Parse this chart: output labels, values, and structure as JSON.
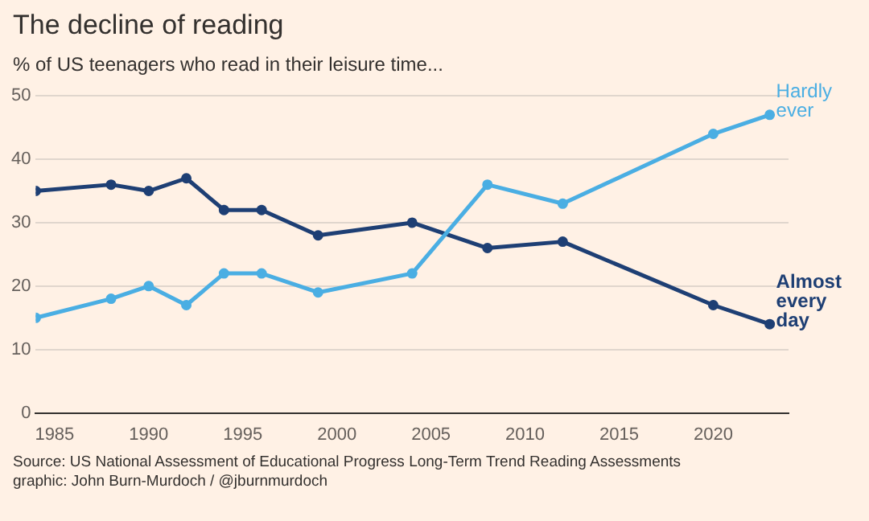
{
  "chart_data": {
    "type": "line",
    "title": "The decline of reading",
    "subtitle": "% of US teenagers who read in their leisure time...",
    "x": [
      1984,
      1988,
      1990,
      1992,
      1994,
      1996,
      1999,
      2004,
      2008,
      2012,
      2020,
      2023
    ],
    "series": [
      {
        "name": "Hardly ever",
        "color": "#4aaee3",
        "values": [
          15,
          18,
          20,
          17,
          22,
          22,
          19,
          22,
          36,
          33,
          44,
          47
        ]
      },
      {
        "name": "Almost every day",
        "color": "#1e3f74",
        "values": [
          35,
          36,
          35,
          37,
          32,
          32,
          28,
          30,
          26,
          27,
          17,
          14
        ]
      }
    ],
    "xlim": [
      1984,
      2024
    ],
    "xticks": [
      1985,
      1990,
      1995,
      2000,
      2005,
      2010,
      2015,
      2020
    ],
    "ylim": [
      0,
      50
    ],
    "yticks": [
      0,
      10,
      20,
      30,
      40,
      50
    ],
    "grid": "y",
    "legend": false,
    "marker": "circle",
    "line_style": "solid",
    "annotations": [
      "Source: US National Assessment of Educational Progress Long-Term Trend Reading Assessments",
      "graphic: John Burn-Murdoch / @jburnmurdoch"
    ]
  }
}
